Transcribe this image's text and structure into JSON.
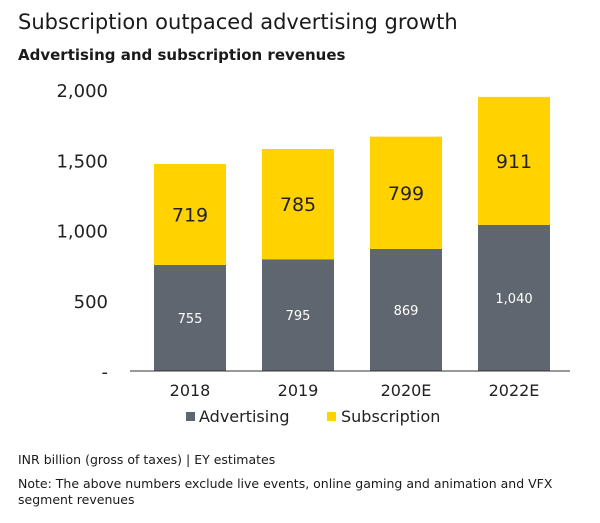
{
  "chart_data": {
    "type": "bar",
    "stacked": true,
    "title": "Subscription outpaced advertising growth",
    "subtitle": "Advertising and subscription revenues",
    "categories": [
      "2018",
      "2019",
      "2020E",
      "2022E"
    ],
    "series": [
      {
        "name": "Advertising",
        "values": [
          755,
          795,
          869,
          1040
        ],
        "labels": [
          "755",
          "795",
          "869",
          "1,040"
        ],
        "color": "#5f6670"
      },
      {
        "name": "Subscription",
        "values": [
          719,
          785,
          799,
          911
        ],
        "labels": [
          "719",
          "785",
          "799",
          "911"
        ],
        "color": "#ffd200"
      }
    ],
    "yticks": [
      "-",
      "500",
      "1,000",
      "1,500",
      "2,000"
    ],
    "ylim": [
      0,
      2000
    ],
    "grid": false,
    "legend_position": "bottom",
    "source": "INR billion (gross of taxes) | EY estimates",
    "note": "Note: The above numbers exclude live events, online gaming and animation and VFX segment revenues"
  }
}
